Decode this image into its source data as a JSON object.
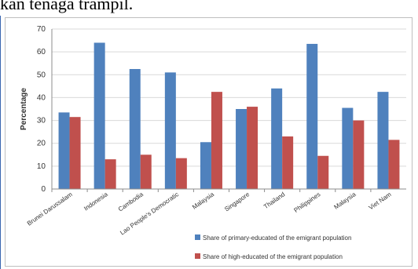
{
  "top_text": "kan tenaga trampil.",
  "chart_data": {
    "type": "bar",
    "ylabel": "Percentage",
    "xlabel": "",
    "ylim": [
      0,
      70
    ],
    "yticks": [
      0,
      10,
      20,
      30,
      40,
      50,
      60,
      70
    ],
    "grid": true,
    "legend_position": "bottom-right",
    "categories": [
      "Brunei Darussalam",
      "Indonesia",
      "Cambodia",
      "Lao People's Democratic",
      "Malaysia",
      "Singapore",
      "Thailand",
      "Philippines",
      "Malaysia",
      "Viet Nam"
    ],
    "series": [
      {
        "name": "Share of primary-educated of the emigrant population",
        "color": "#4f81bd",
        "values": [
          33.5,
          64,
          52.5,
          51,
          20.5,
          35,
          44,
          63.5,
          35.5,
          42.5
        ]
      },
      {
        "name": "Share of high-educated of the emigrant population",
        "color": "#c0504d",
        "values": [
          31.5,
          13,
          15,
          13.5,
          42.5,
          36,
          23,
          14.5,
          30,
          21.5
        ]
      }
    ]
  }
}
